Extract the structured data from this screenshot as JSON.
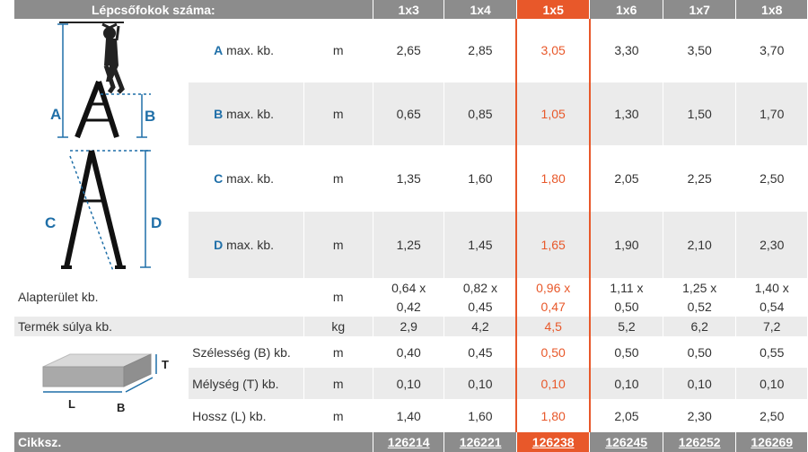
{
  "header": {
    "title": "Lépcsőfokok száma:",
    "columns": [
      "1x3",
      "1x4",
      "1x5",
      "1x6",
      "1x7",
      "1x8"
    ]
  },
  "highlight_color": "#e8582a",
  "rows": {
    "A": {
      "letter": "A",
      "label": " max. kb.",
      "unit": "m",
      "values": [
        "2,65",
        "2,85",
        "3,05",
        "3,30",
        "3,50",
        "3,70"
      ]
    },
    "B": {
      "letter": "B",
      "label": " max. kb.",
      "unit": "m",
      "values": [
        "0,65",
        "0,85",
        "1,05",
        "1,30",
        "1,50",
        "1,70"
      ]
    },
    "C": {
      "letter": "C",
      "label": " max. kb.",
      "unit": "m",
      "values": [
        "1,35",
        "1,60",
        "1,80",
        "2,05",
        "2,25",
        "2,50"
      ]
    },
    "D": {
      "letter": "D",
      "label": " max. kb.",
      "unit": "m",
      "values": [
        "1,25",
        "1,45",
        "1,65",
        "1,90",
        "2,10",
        "2,30"
      ]
    },
    "area": {
      "label": "Alapterület kb.",
      "unit": "m",
      "top": [
        "0,64 x",
        "0,82 x",
        "0,96 x",
        "1,11 x",
        "1,25 x",
        "1,40 x"
      ],
      "bottom": [
        "0,42",
        "0,45",
        "0,47",
        "0,50",
        "0,52",
        "0,54"
      ]
    },
    "weight": {
      "label": "Termék súlya kb.",
      "unit": "kg",
      "values": [
        "2,9",
        "4,2",
        "4,5",
        "5,2",
        "6,2",
        "7,2"
      ]
    },
    "width": {
      "label": "Szélesség (B) kb.",
      "unit": "m",
      "values": [
        "0,40",
        "0,45",
        "0,50",
        "0,50",
        "0,50",
        "0,55"
      ]
    },
    "depth": {
      "label": "Mélység (T) kb.",
      "unit": "m",
      "values": [
        "0,10",
        "0,10",
        "0,10",
        "0,10",
        "0,10",
        "0,10"
      ]
    },
    "length": {
      "label": "Hossz (L) kb.",
      "unit": "m",
      "values": [
        "1,40",
        "1,60",
        "1,80",
        "2,05",
        "2,30",
        "2,50"
      ]
    }
  },
  "footer": {
    "label": "Cikksz.",
    "codes": [
      "126214",
      "126221",
      "126238",
      "126245",
      "126252",
      "126269"
    ]
  },
  "diagram_labels": {
    "a": "A",
    "b": "B",
    "c": "C",
    "d": "D",
    "t": "T",
    "l": "L",
    "bb": "B"
  }
}
